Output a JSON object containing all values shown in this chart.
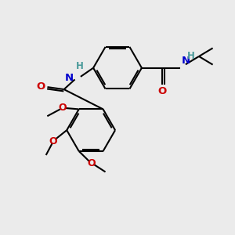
{
  "background_color": "#ebebeb",
  "bond_color": "#000000",
  "N_color": "#0000cc",
  "O_color": "#cc0000",
  "H_color": "#4a9a9a",
  "line_width": 1.5,
  "fig_size": [
    3.0,
    3.0
  ],
  "dpi": 100,
  "xlim": [
    0,
    10
  ],
  "ylim": [
    0,
    10
  ]
}
